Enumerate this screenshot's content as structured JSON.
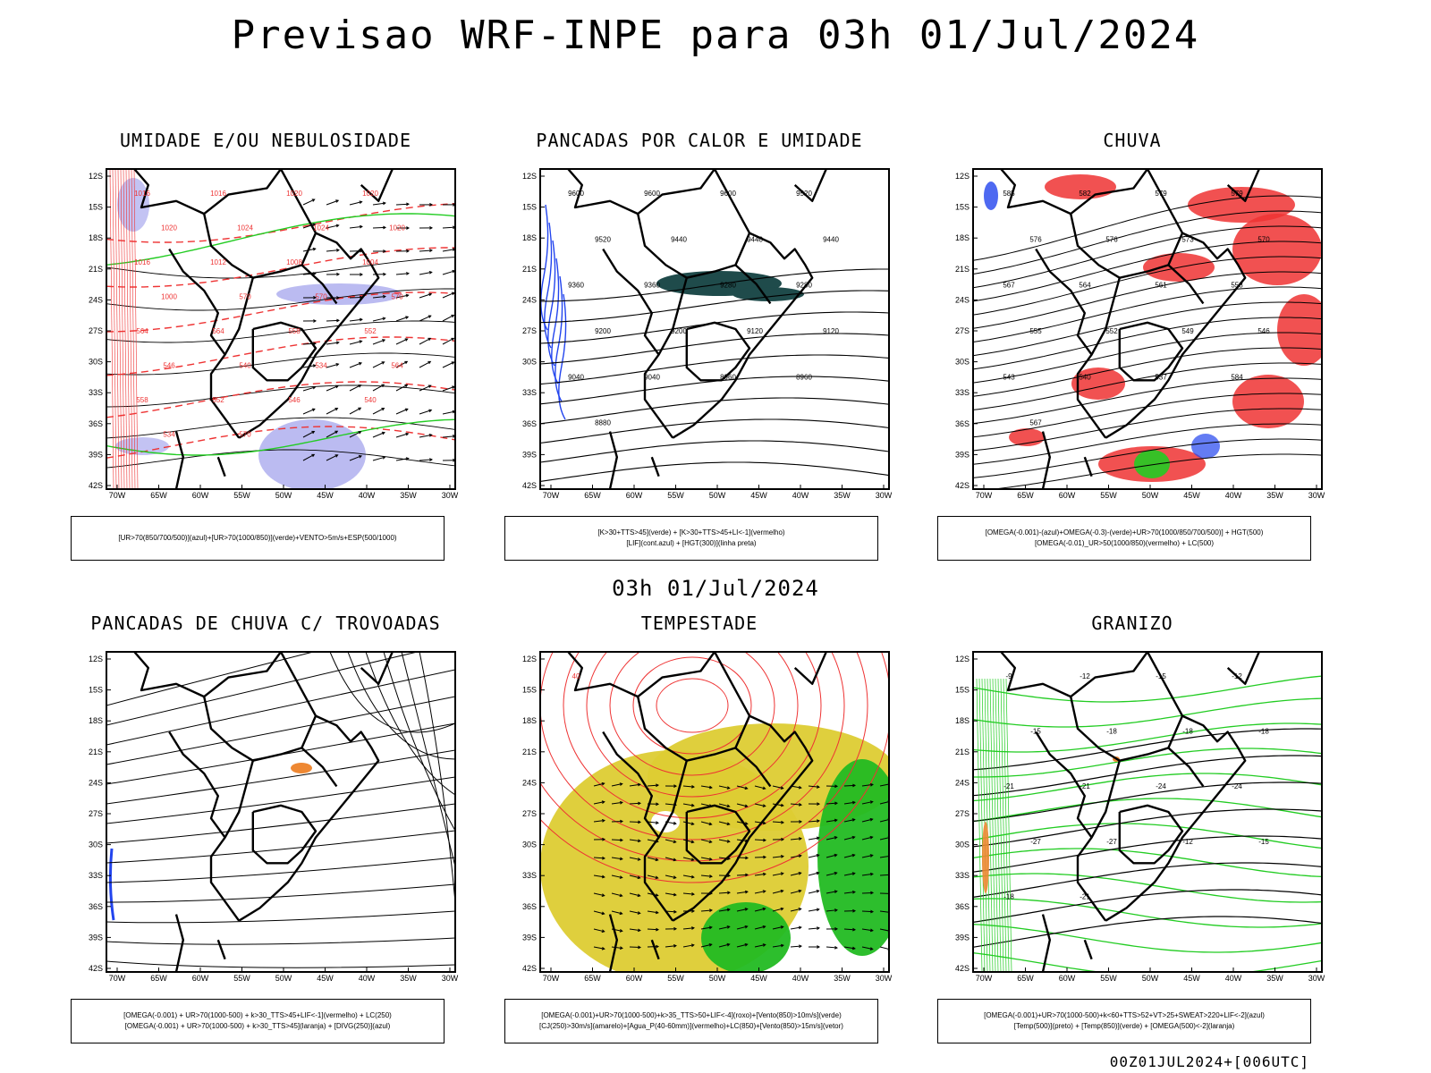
{
  "header": {
    "title": "Previsao WRF-INPE  para 03h 01/Jul/2024"
  },
  "middle": {
    "title": "03h 01/Jul/2024"
  },
  "footer": {
    "run_label": "00Z01JUL2024+[006UTC]"
  },
  "axes": {
    "lat_labels": [
      "12S",
      "15S",
      "18S",
      "21S",
      "24S",
      "27S",
      "30S",
      "33S",
      "36S",
      "39S",
      "42S"
    ],
    "lon_labels": [
      "70W",
      "65W",
      "60W",
      "55W",
      "50W",
      "45W",
      "40W",
      "35W",
      "30W"
    ]
  },
  "panels": [
    {
      "title": "UMIDADE E/OU NEBULOSIDADE",
      "legend": [
        "[UR>70(850/700/500)](azul)+[UR>70(1000/850)](verde)+VENTO>5m/s+ESP(500/1000)"
      ],
      "contour_labels": [
        "1016",
        "1016",
        "1020",
        "1020",
        "1020",
        "1024",
        "1024",
        "1020",
        "1016",
        "1012",
        "1008",
        "1004",
        "1000",
        "570",
        "570",
        "570",
        "564",
        "564",
        "558",
        "552",
        "546",
        "540",
        "534",
        "564",
        "558",
        "552",
        "546",
        "540",
        "534",
        "570"
      ],
      "colors": {
        "shade": "#aaaaee",
        "green": "#22cc22",
        "red": "#ee3333",
        "black": "#000000"
      }
    },
    {
      "title": "PANCADAS POR CALOR E UMIDADE",
      "legend": [
        "[K>30+TTS>45](verde) + [K>30+TTS>45+LI<-1](vermelho)",
        "[LIF](cont.azul) + [HGT(300)](linha preta)"
      ],
      "contour_labels": [
        "9600",
        "9600",
        "9600",
        "9520",
        "9520",
        "9440",
        "9440",
        "9440",
        "9360",
        "9360",
        "9280",
        "9280",
        "9200",
        "9200",
        "9120",
        "9120",
        "9040",
        "9040",
        "8960",
        "8960",
        "8880"
      ],
      "colors": {
        "shade": "#1f4b4b",
        "blue": "#2244ee",
        "black": "#000000"
      }
    },
    {
      "title": "CHUVA",
      "legend": [
        "[OMEGA(-0.001)-(azul)+OMEGA(-0.3)-(verde)+UR>70(1000/850/700/500)] + HGT(500)",
        "[OMEGA(-0.01)_UR>50(1000/850)(vermelho) + LC(500)"
      ],
      "contour_labels": [
        "585",
        "582",
        "579",
        "579",
        "576",
        "576",
        "573",
        "570",
        "567",
        "564",
        "561",
        "558",
        "555",
        "552",
        "549",
        "546",
        "543",
        "540",
        "537",
        "584",
        "567"
      ],
      "colors": {
        "red": "#ee3333",
        "green": "#22cc22",
        "blue": "#2244ee",
        "black": "#000000"
      }
    },
    {
      "title": "PANCADAS DE CHUVA C/ TROVOADAS",
      "legend": [
        "[OMEGA(-0.001) + UR>70(1000-500) + k>30_TTS>45+LIF<-1](vermelho) + LC(250)",
        "[OMEGA(-0.001) + UR>70(1000-500) + k>30_TTS>45](laranja) + [DIVG(250)](azul)"
      ],
      "contour_labels": [],
      "colors": {
        "orange": "#ee8833",
        "blue": "#2244ee",
        "black": "#000000"
      }
    },
    {
      "title": "TEMPESTADE",
      "legend": [
        "[OMEGA(-0.001)+UR>70(1000-500)+k>35_TTS>50+LIF<-4](roxo)+[Vento(850)>10m/s](verde)",
        "[CJ(250)>30m/s](amarelo)+[Agua_P(40-60mm)](vermelho)+LC(850)+[Vento(850)>15m/s](vetor)"
      ],
      "contour_labels": [
        "40"
      ],
      "colors": {
        "yellow": "#ddcc33",
        "green": "#22bb22",
        "red": "#ee3333",
        "black": "#000000"
      }
    },
    {
      "title": "GRANIZO",
      "legend": [
        "[OMEGA(-0.001)+UR>70(1000-500)+k<60+TTS>52+VT>25+SWEAT>220+LIF<-2](azul)",
        "[Temp(500)](preto) + [Temp(850)](verde) + [OMEGA(500)<-2](laranja)"
      ],
      "contour_labels": [
        "-9",
        "-12",
        "-15",
        "-12",
        "-15",
        "-18",
        "-18",
        "-18",
        "-21",
        "-21",
        "-24",
        "-24",
        "-27",
        "-27",
        "-12",
        "-15",
        "-18",
        "-21"
      ],
      "colors": {
        "green": "#22cc22",
        "orange": "#ee8833",
        "black": "#000000"
      }
    }
  ]
}
